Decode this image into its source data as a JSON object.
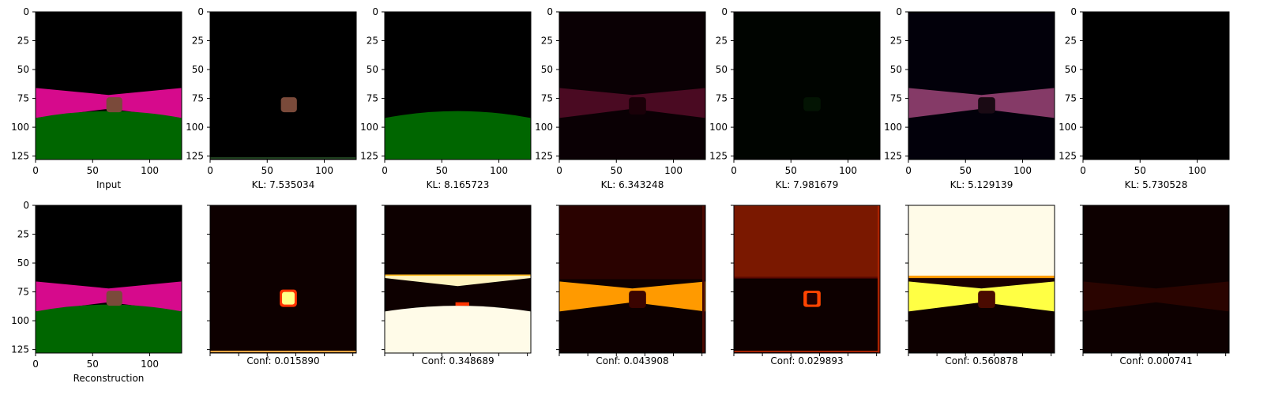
{
  "axis_ticks": [
    "0",
    "25",
    "50",
    "75",
    "100",
    "125"
  ],
  "x_ticks": [
    "0",
    "50",
    "100"
  ],
  "top_row": [
    {
      "caption": "Input",
      "kind": "scene",
      "opacity": 1.0
    },
    {
      "caption": "KL: 7.535034",
      "kind": "object",
      "opacity": 1.0
    },
    {
      "caption": "KL: 8.165723",
      "kind": "ground",
      "opacity": 1.0
    },
    {
      "caption": "KL: 6.343248",
      "kind": "dark-wall",
      "opacity": 1.0
    },
    {
      "caption": "KL: 7.981679",
      "kind": "faint-green",
      "opacity": 1.0
    },
    {
      "caption": "KL: 5.129139",
      "kind": "pink-wall",
      "opacity": 1.0
    },
    {
      "caption": "KL: 5.730528",
      "kind": "blank",
      "opacity": 1.0
    }
  ],
  "bottom_row": [
    {
      "caption": "Reconstruction",
      "kind": "scene"
    },
    {
      "caption": "Conf: 0.015890",
      "kind": "heat-object"
    },
    {
      "caption": "Conf: 0.348689",
      "kind": "heat-ground"
    },
    {
      "caption": "Conf: 0.043908",
      "kind": "heat-wall-orange"
    },
    {
      "caption": "Conf: 0.029893",
      "kind": "heat-sky-red"
    },
    {
      "caption": "Conf: 0.560878",
      "kind": "heat-sky-yellow"
    },
    {
      "caption": "Conf: 0.000741",
      "kind": "heat-faint"
    }
  ],
  "colors": {
    "magenta_wall": "#d60a8c",
    "green_ground": "#006600",
    "object_brown": "#7a4a3a",
    "heat_dark": "#0d0000",
    "heat_orange": "#ff9a00",
    "heat_yellow": "#ffff44",
    "heat_white": "#fffbe8"
  }
}
